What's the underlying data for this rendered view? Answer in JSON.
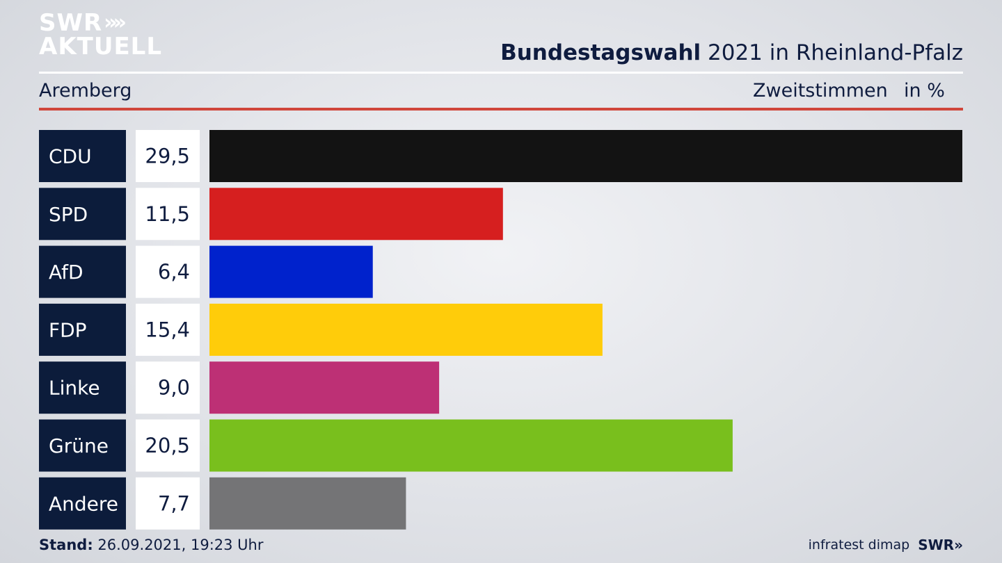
{
  "brand": {
    "logo_line1": "SWR",
    "logo_line2": "AKTUELL",
    "logo_chevrons": "»",
    "footer_logo": "SWR»"
  },
  "header": {
    "title_bold": "Bundestagswahl",
    "title_rest": " 2021 in Rheinland-Pfalz"
  },
  "subheader": {
    "region": "Aremberg",
    "measure": "Zweitstimmen",
    "unit": "in %"
  },
  "footer": {
    "stand_label": "Stand:",
    "stand_value": " 26.09.2021, 19:23 Uhr",
    "source": "infratest dimap"
  },
  "colors": {
    "label_box": "#0c1c3b",
    "value_box": "#ffffff",
    "accent_rule": "#d0463b"
  },
  "chart_data": {
    "type": "bar",
    "orientation": "horizontal",
    "categories": [
      "CDU",
      "SPD",
      "AfD",
      "FDP",
      "Linke",
      "Grüne",
      "Andere"
    ],
    "values": [
      29.5,
      11.5,
      6.4,
      15.4,
      9.0,
      20.5,
      7.7
    ],
    "value_labels": [
      "29,5",
      "11,5",
      "6,4",
      "15,4",
      "9,0",
      "20,5",
      "7,7"
    ],
    "colors": [
      "#131313",
      "#d61f1f",
      "#0022cc",
      "#ffcc0a",
      "#bd3075",
      "#79bf1d",
      "#747476"
    ],
    "xlim": [
      0,
      29.5
    ],
    "grid": false,
    "legend": "none"
  }
}
